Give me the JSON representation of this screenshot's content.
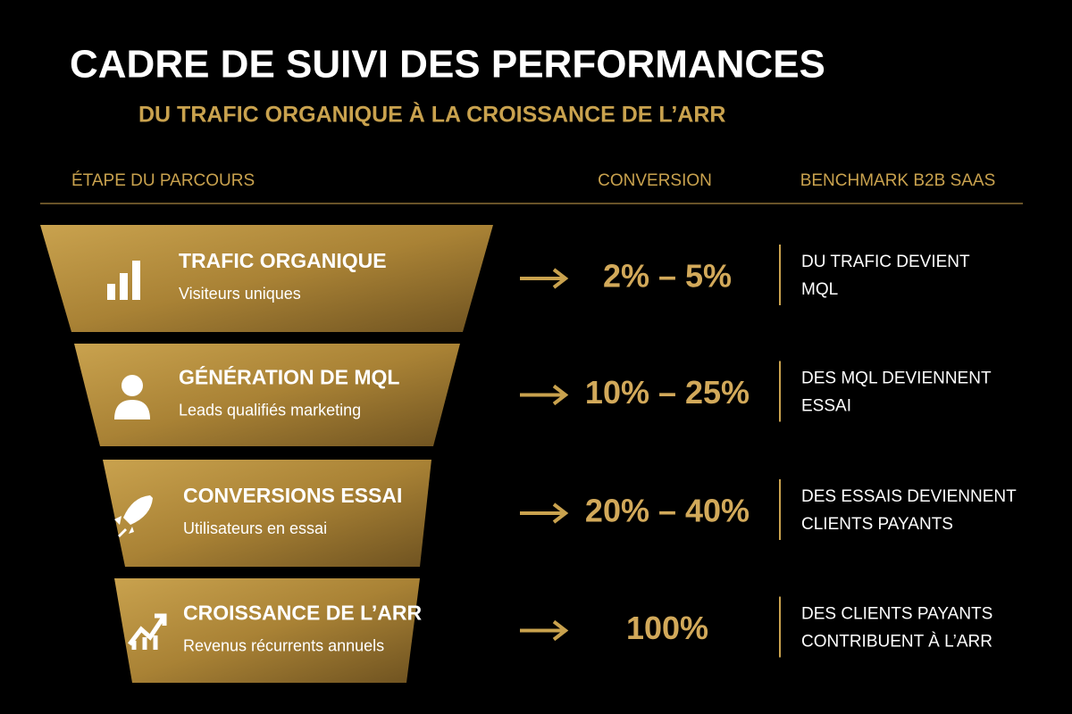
{
  "header": {
    "title": "CADRE DE SUIVI DES PERFORMANCES",
    "subtitle": "DU TRAFIC ORGANIQUE À LA CROISSANCE DE L’ARR"
  },
  "columns": [
    "ÉTAPE DU PARCOURS",
    "CONVERSION",
    "BENCHMARK B2B SAAS"
  ],
  "stages": [
    {
      "title": "TRAFIC ORGANIQUE",
      "subtitle": "Visiteurs uniques",
      "conversion": "2% – 5%",
      "benchmark": [
        "DU TRAFIC DEVIENT",
        "MQL"
      ]
    },
    {
      "title": "GÉNÉRATION DE MQL",
      "subtitle": "Leads qualifiés marketing",
      "conversion": "10% – 25%",
      "benchmark": [
        "DES MQL DEVIENNENT",
        "ESSAI"
      ]
    },
    {
      "title": "CONVERSIONS ESSAI",
      "subtitle": "Utilisateurs en essai",
      "conversion": "20% – 40%",
      "benchmark": [
        "DES ESSAIS DEVIENNENT",
        "CLIENTS PAYANTS"
      ]
    },
    {
      "title": "CROISSANCE DE L’ARR",
      "subtitle": "Revenus récurrents annuels",
      "conversion": "100%",
      "benchmark": [
        "DES CLIENTS PAYANTS",
        "CONTRIBUENT À L’ARR"
      ]
    }
  ]
}
